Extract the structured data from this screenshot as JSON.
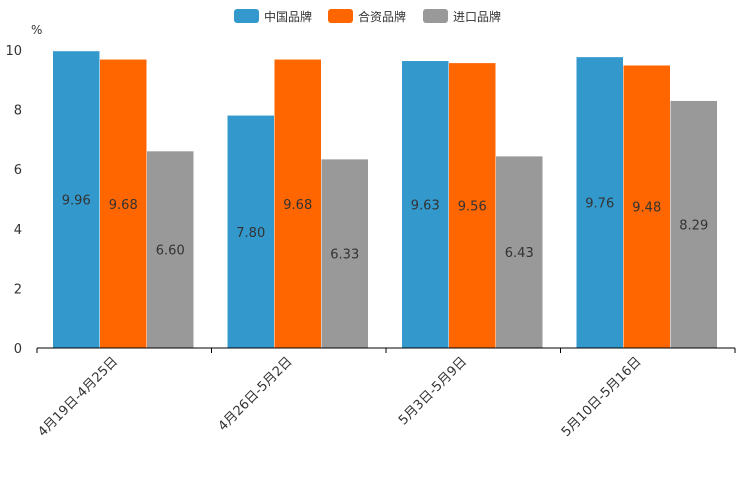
{
  "chart_data": {
    "type": "bar",
    "title": "",
    "unit_label": "%",
    "xlabel": "",
    "ylabel": "%",
    "ylim": [
      0,
      10
    ],
    "yticks": [
      0,
      2,
      4,
      6,
      8,
      10
    ],
    "grid": false,
    "legend_position": "top-center",
    "categories": [
      "4月19日-4月25日",
      "4月26日-5月2日",
      "5月3日-5月9日",
      "5月10日-5月16日"
    ],
    "series": [
      {
        "name": "中国品牌",
        "color": "#3399cc",
        "values": [
          9.96,
          7.8,
          9.63,
          9.76
        ],
        "labels": [
          "9.96",
          "7.80",
          "9.63",
          "9.76"
        ]
      },
      {
        "name": "合资品牌",
        "color": "#ff6600",
        "values": [
          9.68,
          9.68,
          9.56,
          9.48
        ],
        "labels": [
          "9.68",
          "9.68",
          "9.56",
          "9.48"
        ]
      },
      {
        "name": "进口品牌",
        "color": "#999999",
        "values": [
          6.6,
          6.33,
          6.43,
          8.29
        ],
        "labels": [
          "6.60",
          "6.33",
          "6.43",
          "8.29"
        ]
      }
    ]
  }
}
